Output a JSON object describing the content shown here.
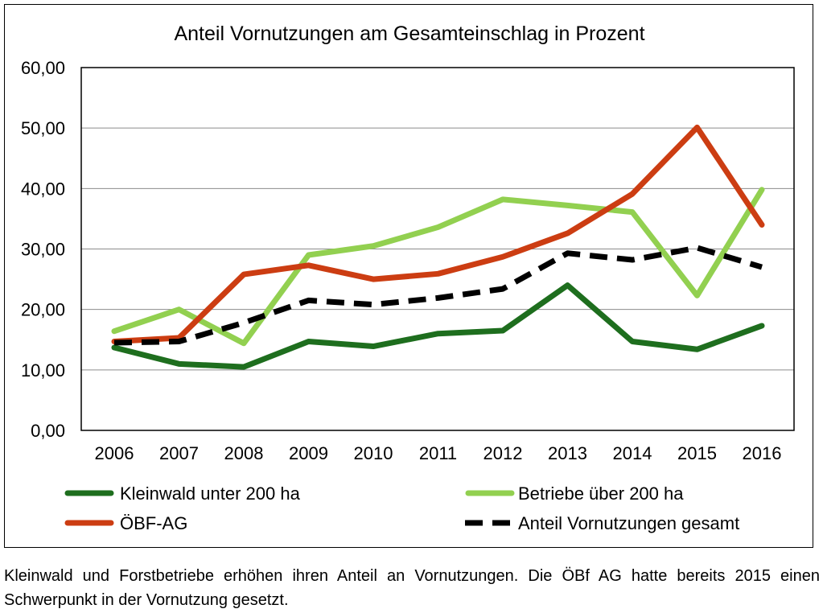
{
  "chart_data": {
    "type": "line",
    "title": "Anteil Vornutzungen am Gesamteinschlag in Prozent",
    "xlabel": "",
    "ylabel": "",
    "categories": [
      "2006",
      "2007",
      "2008",
      "2009",
      "2010",
      "2011",
      "2012",
      "2013",
      "2014",
      "2015",
      "2016"
    ],
    "ylim": [
      0,
      60
    ],
    "yticks": [
      "0,00",
      "10,00",
      "20,00",
      "30,00",
      "40,00",
      "50,00",
      "60,00"
    ],
    "grid": "horizontal",
    "legend_position": "bottom",
    "series": [
      {
        "name": "Kleinwald unter 200 ha",
        "color": "#1e6e1e",
        "style": "solid",
        "values": [
          13.7,
          11.0,
          10.5,
          14.7,
          13.9,
          16.0,
          16.5,
          24.0,
          14.7,
          13.4,
          17.3
        ]
      },
      {
        "name": "Betriebe über 200 ha",
        "color": "#92d050",
        "style": "solid",
        "values": [
          16.4,
          20.0,
          14.4,
          29.0,
          30.5,
          33.6,
          38.2,
          37.2,
          36.1,
          22.3,
          39.8
        ]
      },
      {
        "name": "ÖBF-AG",
        "color": "#cc3d12",
        "style": "solid",
        "values": [
          14.7,
          15.3,
          25.8,
          27.3,
          25.0,
          25.9,
          28.7,
          32.6,
          39.1,
          50.1,
          34.0
        ]
      },
      {
        "name": "Anteil Vornutzungen gesamt",
        "color": "#000000",
        "style": "dashed",
        "values": [
          14.5,
          14.7,
          17.8,
          21.5,
          20.8,
          21.9,
          23.4,
          29.3,
          28.2,
          30.2,
          27.0
        ]
      }
    ]
  },
  "caption": "Kleinwald und Forstbetriebe erhöhen ihren Anteil an Vornutzungen. Die ÖBf AG hatte bereits 2015 einen Schwerpunkt in der Vornutzung gesetzt."
}
